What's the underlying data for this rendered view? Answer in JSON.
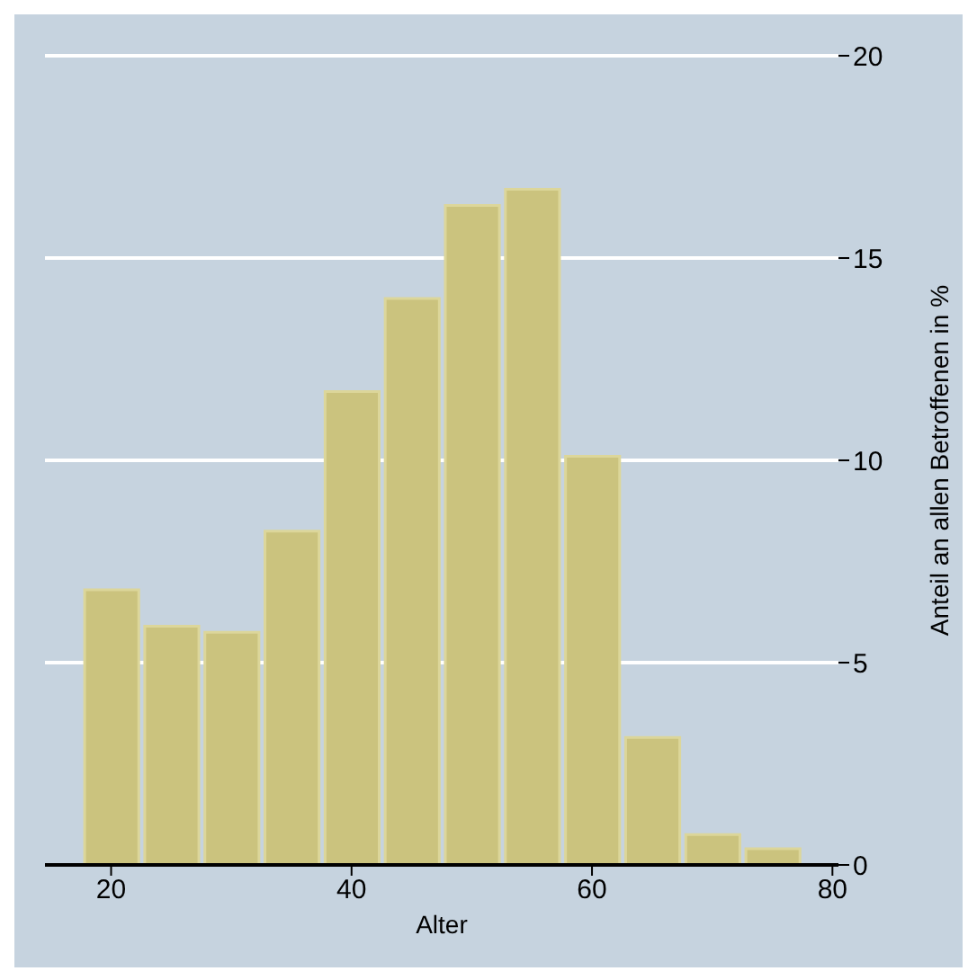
{
  "chart_data": {
    "type": "histogram",
    "xlabel": "Alter",
    "ylabel": "Anteil an allen Betroffenen in %",
    "bins": [
      17.5,
      22.5,
      27.5,
      32.5,
      37.5,
      42.5,
      47.5,
      52.5,
      57.5,
      62.5,
      67.5,
      72.5,
      77.5
    ],
    "values": [
      6.8,
      5.9,
      5.75,
      8.25,
      11.7,
      14.0,
      16.3,
      16.7,
      10.1,
      3.15,
      0.75,
      0.4
    ],
    "color": "#cbc37e",
    "xlim": [
      14.5,
      80.5
    ],
    "xticks": [
      20,
      40,
      60,
      80
    ],
    "ylim": [
      0,
      20
    ],
    "yticks": [
      0,
      5,
      10,
      15,
      20
    ],
    "grid": "y"
  }
}
